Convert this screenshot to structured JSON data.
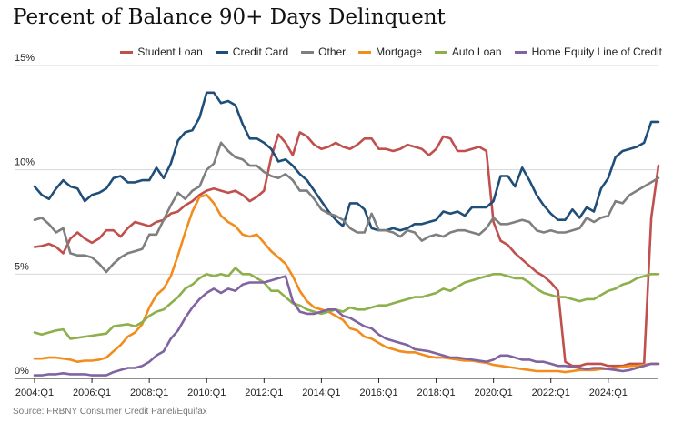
{
  "title": "Percent of Balance 90+ Days Delinquent",
  "source": "Source: FRBNY Consumer Credit Panel/Equifax",
  "chart_data": {
    "type": "line",
    "title": "Percent of Balance 90+ Days Delinquent",
    "xlabel": "",
    "ylabel": "",
    "xlim": [
      "2004:Q1",
      "2025:Q4"
    ],
    "ylim": [
      0,
      15
    ],
    "grid": true,
    "legend_position": "top-right",
    "x_tick_labels": [
      "2004:Q1",
      "2006:Q1",
      "2008:Q1",
      "2010:Q1",
      "2012:Q1",
      "2014:Q1",
      "2016:Q1",
      "2018:Q1",
      "2020:Q1",
      "2022:Q1",
      "2024:Q1"
    ],
    "y_tick_labels": [
      "0%",
      "5%",
      "10%",
      "15%"
    ],
    "y_ticks": [
      0,
      5,
      10,
      15
    ],
    "x_start": "2004:Q1",
    "series": [
      {
        "name": "Student Loan",
        "color": "#c0504d",
        "values": [
          6.3,
          6.35,
          6.45,
          6.3,
          6.0,
          6.7,
          7.0,
          6.7,
          6.5,
          6.7,
          7.1,
          7.1,
          6.8,
          7.2,
          7.5,
          7.4,
          7.3,
          7.5,
          7.6,
          7.9,
          8.0,
          8.3,
          8.5,
          8.8,
          9.0,
          9.1,
          9.0,
          8.9,
          9.0,
          8.8,
          8.5,
          8.7,
          9.0,
          10.6,
          11.7,
          11.3,
          10.7,
          11.8,
          11.6,
          11.2,
          11.0,
          11.1,
          11.3,
          11.1,
          11.0,
          11.2,
          11.5,
          11.5,
          11.0,
          11.0,
          10.9,
          11.0,
          11.2,
          11.1,
          11.0,
          10.7,
          11.0,
          11.6,
          11.5,
          10.9,
          10.9,
          11.0,
          11.1,
          10.9,
          7.5,
          6.6,
          6.4,
          6.0,
          5.7,
          5.4,
          5.1,
          4.9,
          4.6,
          4.2,
          0.8,
          0.6,
          0.6,
          0.7,
          0.7,
          0.7,
          0.6,
          0.6,
          0.6,
          0.7,
          0.7,
          0.7,
          7.7,
          10.2
        ]
      },
      {
        "name": "Credit Card",
        "color": "#1f4e79",
        "values": [
          9.2,
          8.8,
          8.6,
          9.1,
          9.5,
          9.2,
          9.1,
          8.5,
          8.8,
          8.9,
          9.1,
          9.6,
          9.7,
          9.4,
          9.4,
          9.5,
          9.5,
          10.1,
          9.6,
          10.3,
          11.4,
          11.8,
          11.9,
          12.5,
          13.7,
          13.7,
          13.2,
          13.3,
          13.1,
          12.2,
          11.5,
          11.5,
          11.3,
          11.0,
          10.4,
          10.5,
          10.2,
          9.8,
          9.5,
          9.0,
          8.5,
          8.0,
          7.6,
          7.3,
          8.4,
          8.4,
          8.1,
          7.2,
          7.1,
          7.1,
          7.2,
          7.1,
          7.2,
          7.4,
          7.4,
          7.5,
          7.6,
          8.0,
          7.9,
          8.0,
          7.8,
          8.2,
          8.2,
          8.2,
          8.5,
          9.7,
          9.7,
          9.2,
          10.1,
          9.5,
          8.8,
          8.3,
          7.9,
          7.6,
          7.6,
          8.1,
          7.7,
          8.2,
          8.0,
          9.1,
          9.6,
          10.6,
          10.9,
          11.0,
          11.1,
          11.3,
          12.3,
          12.3
        ]
      },
      {
        "name": "Other",
        "color": "#7f7f7f",
        "values": [
          7.6,
          7.7,
          7.4,
          7.0,
          7.2,
          6.0,
          5.9,
          5.9,
          5.8,
          5.5,
          5.1,
          5.5,
          5.8,
          6.0,
          6.1,
          6.2,
          6.9,
          6.9,
          7.6,
          8.3,
          8.9,
          8.6,
          9.0,
          9.2,
          10.0,
          10.3,
          11.3,
          10.9,
          10.6,
          10.5,
          10.2,
          10.2,
          9.9,
          9.7,
          9.6,
          9.8,
          9.5,
          9.0,
          9.0,
          8.6,
          8.1,
          7.9,
          7.8,
          7.6,
          7.2,
          7.0,
          7.0,
          7.9,
          7.1,
          7.1,
          7.0,
          6.8,
          7.1,
          7.0,
          6.6,
          6.8,
          6.9,
          6.8,
          7.0,
          7.1,
          7.1,
          7.0,
          6.9,
          7.2,
          7.7,
          7.4,
          7.4,
          7.5,
          7.6,
          7.5,
          7.1,
          7.0,
          7.1,
          7.0,
          7.0,
          7.1,
          7.2,
          7.7,
          7.5,
          7.7,
          7.8,
          8.5,
          8.4,
          8.8,
          9.0,
          9.2,
          9.4,
          9.6
        ]
      },
      {
        "name": "Mortgage",
        "color": "#f28c1c",
        "values": [
          0.95,
          0.95,
          1.0,
          1.0,
          0.95,
          0.9,
          0.8,
          0.85,
          0.85,
          0.9,
          1.0,
          1.3,
          1.6,
          2.0,
          2.2,
          2.6,
          3.4,
          4.0,
          4.3,
          4.9,
          5.9,
          7.0,
          8.0,
          8.7,
          8.8,
          8.4,
          7.8,
          7.5,
          7.3,
          6.9,
          6.8,
          6.9,
          6.5,
          6.1,
          5.8,
          5.5,
          4.9,
          4.2,
          3.7,
          3.4,
          3.3,
          3.2,
          3.0,
          2.8,
          2.4,
          2.3,
          2.0,
          1.9,
          1.7,
          1.5,
          1.4,
          1.3,
          1.25,
          1.25,
          1.15,
          1.05,
          1.0,
          1.0,
          0.95,
          0.9,
          0.85,
          0.85,
          0.8,
          0.75,
          0.65,
          0.6,
          0.55,
          0.5,
          0.45,
          0.4,
          0.35,
          0.35,
          0.35,
          0.35,
          0.3,
          0.35,
          0.4,
          0.4,
          0.4,
          0.45,
          0.45,
          0.5,
          0.55,
          0.6,
          0.6,
          0.65,
          0.7,
          0.7
        ]
      },
      {
        "name": "Auto Loan",
        "color": "#8db04a",
        "values": [
          2.2,
          2.1,
          2.2,
          2.3,
          2.35,
          1.9,
          1.95,
          2.0,
          2.05,
          2.1,
          2.15,
          2.5,
          2.55,
          2.6,
          2.5,
          2.7,
          3.0,
          3.2,
          3.3,
          3.6,
          3.9,
          4.3,
          4.5,
          4.8,
          5.0,
          4.9,
          5.0,
          4.9,
          5.3,
          5.0,
          5.0,
          4.8,
          4.6,
          4.2,
          4.2,
          3.9,
          3.6,
          3.5,
          3.3,
          3.2,
          3.1,
          3.2,
          3.3,
          3.2,
          3.4,
          3.3,
          3.3,
          3.4,
          3.5,
          3.5,
          3.6,
          3.7,
          3.8,
          3.9,
          3.9,
          4.0,
          4.1,
          4.3,
          4.2,
          4.4,
          4.6,
          4.7,
          4.8,
          4.9,
          5.0,
          5.0,
          4.9,
          4.8,
          4.8,
          4.6,
          4.3,
          4.1,
          4.0,
          3.9,
          3.9,
          3.8,
          3.7,
          3.8,
          3.8,
          4.0,
          4.2,
          4.3,
          4.5,
          4.6,
          4.8,
          4.9,
          5.0,
          5.0
        ]
      },
      {
        "name": "Home Equity Line of Credit",
        "color": "#8064a2",
        "values": [
          0.15,
          0.15,
          0.2,
          0.2,
          0.25,
          0.2,
          0.2,
          0.2,
          0.15,
          0.15,
          0.15,
          0.3,
          0.4,
          0.5,
          0.5,
          0.6,
          0.8,
          1.1,
          1.3,
          1.9,
          2.3,
          2.9,
          3.4,
          3.8,
          4.1,
          4.3,
          4.1,
          4.3,
          4.2,
          4.5,
          4.6,
          4.6,
          4.6,
          4.7,
          4.8,
          4.9,
          3.7,
          3.2,
          3.1,
          3.1,
          3.2,
          3.3,
          3.3,
          3.0,
          2.9,
          2.7,
          2.5,
          2.4,
          2.1,
          1.9,
          1.8,
          1.7,
          1.6,
          1.4,
          1.35,
          1.3,
          1.2,
          1.1,
          1.0,
          1.0,
          0.95,
          0.9,
          0.85,
          0.8,
          0.9,
          1.1,
          1.1,
          1.0,
          0.9,
          0.9,
          0.8,
          0.8,
          0.7,
          0.6,
          0.6,
          0.55,
          0.5,
          0.45,
          0.5,
          0.5,
          0.45,
          0.4,
          0.35,
          0.4,
          0.5,
          0.6,
          0.7,
          0.7
        ]
      }
    ]
  }
}
